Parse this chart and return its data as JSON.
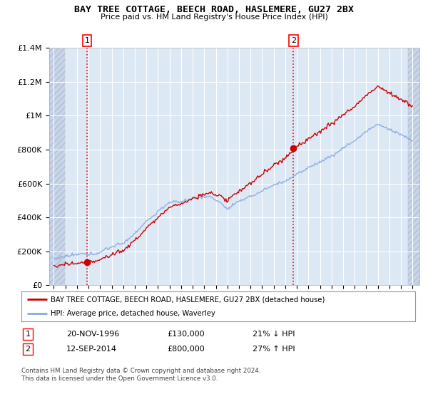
{
  "title": "BAY TREE COTTAGE, BEECH ROAD, HASLEMERE, GU27 2BX",
  "subtitle": "Price paid vs. HM Land Registry's House Price Index (HPI)",
  "legend_line1": "BAY TREE COTTAGE, BEECH ROAD, HASLEMERE, GU27 2BX (detached house)",
  "legend_line2": "HPI: Average price, detached house, Waverley",
  "transaction1_date": "20-NOV-1996",
  "transaction1_price": 130000,
  "transaction1_label": "21% ↓ HPI",
  "transaction2_date": "12-SEP-2014",
  "transaction2_price": 800000,
  "transaction2_label": "27% ↑ HPI",
  "copyright": "Contains HM Land Registry data © Crown copyright and database right 2024.\nThis data is licensed under the Open Government Licence v3.0.",
  "line_color_red": "#cc0000",
  "line_color_blue": "#88aadd",
  "bg_color": "#dde8f5",
  "hatch_color": "#c8d4e8",
  "ylim_max": 1400000,
  "start_year": 1994,
  "end_year": 2025,
  "t1_year": 1996.875,
  "t2_year": 2014.708,
  "p1": 130000,
  "p2": 800000
}
